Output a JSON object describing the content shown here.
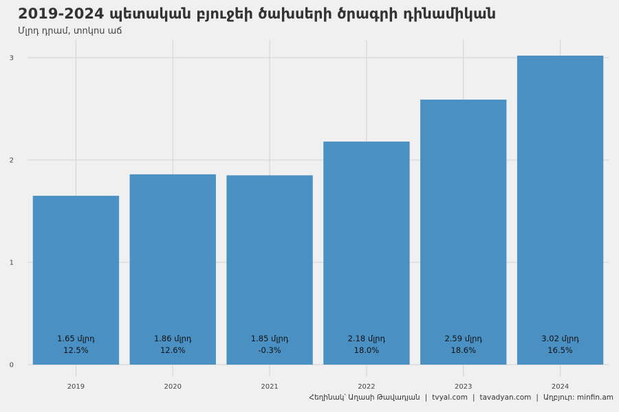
{
  "title": "2019-2024 պետական բյուջեի ծախսերի ծրագրի դինամիկան",
  "subtitle": "Մլրդ դրամ, տոկոս աճ",
  "caption": {
    "author": "Հեղինակ՝ Աղասի Թավադյան",
    "site1": "tvyal.com",
    "site2": "tavadyan.com",
    "source": "Աղբյուր: minfin.am",
    "separator": "|"
  },
  "colors": {
    "bar": "#4a90c2",
    "background": "#f0f0f0",
    "grid": "#d2d2d2"
  },
  "chart_data": {
    "type": "bar",
    "categories": [
      "2019",
      "2020",
      "2021",
      "2022",
      "2023",
      "2024"
    ],
    "values": [
      1.65,
      1.86,
      1.85,
      2.18,
      2.59,
      3.02
    ],
    "value_labels": [
      "1.65 մլրդ",
      "1.86 մլրդ",
      "1.85 մլրդ",
      "2.18 մլրդ",
      "2.59 մլրդ",
      "3.02 մլրդ"
    ],
    "growth_labels": [
      "12.5%",
      "12.6%",
      "-0.3%",
      "18.0%",
      "18.6%",
      "16.5%"
    ],
    "yticks": [
      "0",
      "1",
      "2",
      "3"
    ],
    "ylim": [
      0,
      3.3
    ],
    "grid": true
  }
}
